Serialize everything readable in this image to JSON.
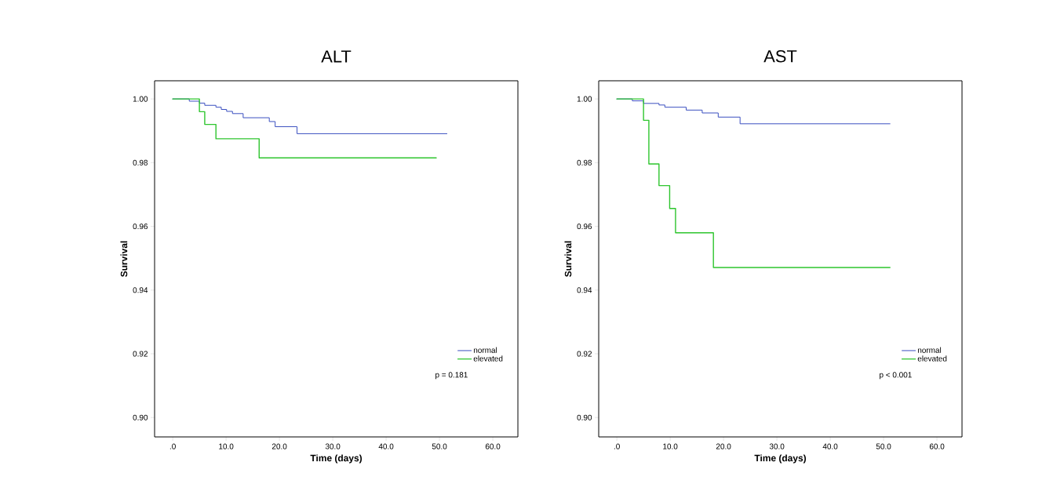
{
  "chart_data": [
    {
      "type": "step",
      "title": "ALT",
      "xlabel": "Time (days)",
      "ylabel": "Survival",
      "series": [
        {
          "name": "normal",
          "color": "#3a4fc0",
          "x": [
            0,
            3.1,
            5.0,
            6.0,
            8.1,
            9.1,
            10.1,
            11.2,
            13.2,
            18.1,
            19.2,
            23.3,
            51.4
          ],
          "values": [
            1.0,
            0.9993,
            0.9987,
            0.998,
            0.9974,
            0.9967,
            0.9961,
            0.9954,
            0.9941,
            0.9929,
            0.9913,
            0.9891,
            0.9891
          ]
        },
        {
          "name": "elevated",
          "color": "#2ec52e",
          "x": [
            0,
            5.0,
            6.0,
            8.1,
            16.2,
            49.4
          ],
          "values": [
            1.0,
            0.996,
            0.992,
            0.9875,
            0.9815,
            0.9815
          ]
        }
      ],
      "xlim": [
        -3.4,
        64.7
      ],
      "ylim": [
        0.8939,
        1.0057
      ],
      "xticks": [
        {
          "value": 0,
          "label": ".0"
        },
        {
          "value": 10,
          "label": "10.0"
        },
        {
          "value": 20,
          "label": "20.0"
        },
        {
          "value": 30,
          "label": "30.0"
        },
        {
          "value": 40,
          "label": "40.0"
        },
        {
          "value": 50,
          "label": "50.0"
        },
        {
          "value": 60,
          "label": "60.0"
        }
      ],
      "yticks": [
        {
          "value": 0.9,
          "label": "0.90"
        },
        {
          "value": 0.92,
          "label": "0.92"
        },
        {
          "value": 0.94,
          "label": "0.94"
        },
        {
          "value": 0.96,
          "label": "0.96"
        },
        {
          "value": 0.98,
          "label": "0.98"
        },
        {
          "value": 1.0,
          "label": "1.00"
        }
      ],
      "legend": "bottom right",
      "marker": "none",
      "line_style": "solid",
      "annotations": [
        "p = 0.181"
      ]
    },
    {
      "type": "step",
      "title": "AST",
      "xlabel": "Time (days)",
      "ylabel": "Survival",
      "series": [
        {
          "name": "normal",
          "color": "#3a4fc0",
          "x": [
            0,
            2.9,
            5.0,
            7.9,
            9.0,
            13.0,
            16.0,
            19.0,
            23.1,
            51.2
          ],
          "values": [
            1.0,
            0.9994,
            0.9986,
            0.9981,
            0.9974,
            0.9965,
            0.9956,
            0.9943,
            0.9922,
            0.9922
          ]
        },
        {
          "name": "elevated",
          "color": "#2ec52e",
          "x": [
            0,
            5.0,
            6.0,
            7.9,
            9.9,
            11.0,
            18.1,
            51.2
          ],
          "values": [
            1.0,
            0.9933,
            0.9796,
            0.9728,
            0.9656,
            0.958,
            0.9471,
            0.9471
          ]
        }
      ],
      "xlim": [
        -3.4,
        64.7
      ],
      "ylim": [
        0.8939,
        1.0057
      ],
      "xticks": [
        {
          "value": 0,
          "label": ".0"
        },
        {
          "value": 10,
          "label": "10.0"
        },
        {
          "value": 20,
          "label": "20.0"
        },
        {
          "value": 30,
          "label": "30.0"
        },
        {
          "value": 40,
          "label": "40.0"
        },
        {
          "value": 50,
          "label": "50.0"
        },
        {
          "value": 60,
          "label": "60.0"
        }
      ],
      "yticks": [
        {
          "value": 0.9,
          "label": "0.90"
        },
        {
          "value": 0.92,
          "label": "0.92"
        },
        {
          "value": 0.94,
          "label": "0.94"
        },
        {
          "value": 0.96,
          "label": "0.96"
        },
        {
          "value": 0.98,
          "label": "0.98"
        },
        {
          "value": 1.0,
          "label": "1.00"
        }
      ],
      "legend": "bottom right",
      "marker": "none",
      "line_style": "solid",
      "annotations": [
        "p < 0.001"
      ]
    }
  ]
}
